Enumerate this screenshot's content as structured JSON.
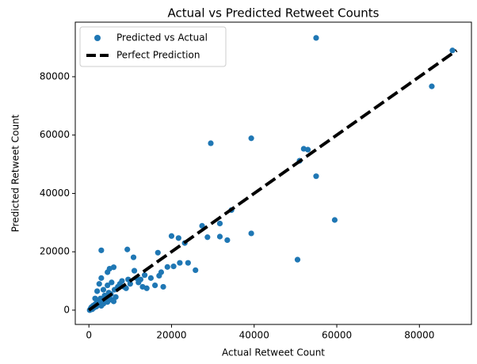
{
  "chart_data": {
    "type": "scatter",
    "title": "Actual vs Predicted Retweet Counts",
    "xlabel": "Actual Retweet Count",
    "ylabel": "Predicted Retweet Count",
    "xlim": [
      -3300,
      92600
    ],
    "ylim": [
      -4900,
      98700
    ],
    "xticks": [
      0,
      20000,
      40000,
      60000,
      80000
    ],
    "yticks": [
      0,
      20000,
      40000,
      60000,
      80000
    ],
    "legend": "upper left",
    "series": [
      {
        "name": "Predicted vs Actual",
        "color": "#1f77b4",
        "kind": "scatter",
        "x": [
          55000,
          88000,
          83000,
          29500,
          39300,
          52000,
          53000,
          51000,
          55000,
          59500,
          50500,
          39300,
          34500,
          33500,
          31700,
          31700,
          28700,
          27400,
          25800,
          24000,
          23200,
          22000,
          21700,
          20000,
          20500,
          19000,
          17500,
          16700,
          17000,
          18000,
          16000,
          14000,
          15000,
          13500,
          12500,
          11000,
          10800,
          9300,
          3000,
          10000,
          9000,
          8000,
          7000,
          6000,
          5000,
          4500,
          3000,
          200,
          400,
          600,
          800,
          1000,
          1200,
          1500,
          1800,
          2000,
          2200,
          2500,
          2800,
          3000,
          3300,
          3500,
          3800,
          4000,
          4200,
          4500,
          4800,
          5000,
          5300,
          5600,
          6000,
          6200,
          6500,
          2000,
          1500,
          3500,
          4500,
          5500,
          2500,
          7500,
          8500,
          9500,
          11500,
          12000,
          13000
        ],
        "values": [
          93300,
          89000,
          76700,
          57200,
          58900,
          55300,
          55000,
          51200,
          45900,
          30900,
          17300,
          26300,
          34300,
          24000,
          25200,
          29700,
          25000,
          28900,
          13700,
          16200,
          23000,
          16200,
          24700,
          25400,
          15000,
          14800,
          13000,
          19700,
          11800,
          8000,
          8500,
          7500,
          11000,
          12000,
          10500,
          13500,
          18100,
          20800,
          20500,
          9000,
          7500,
          10000,
          8000,
          14700,
          14200,
          13000,
          11000,
          0,
          500,
          1000,
          300,
          1500,
          800,
          2000,
          1200,
          3000,
          1800,
          2500,
          4000,
          1500,
          3500,
          2200,
          5000,
          3000,
          4500,
          2800,
          6000,
          4000,
          5500,
          3500,
          3000,
          7000,
          4500,
          6500,
          4000,
          7000,
          8500,
          9500,
          9000,
          9000,
          8000,
          10500,
          11000,
          9500,
          8000
        ]
      },
      {
        "name": "Perfect Prediction",
        "color": "#000000",
        "kind": "line",
        "x": [
          0,
          89000
        ],
        "values": [
          0,
          89000
        ]
      }
    ]
  }
}
